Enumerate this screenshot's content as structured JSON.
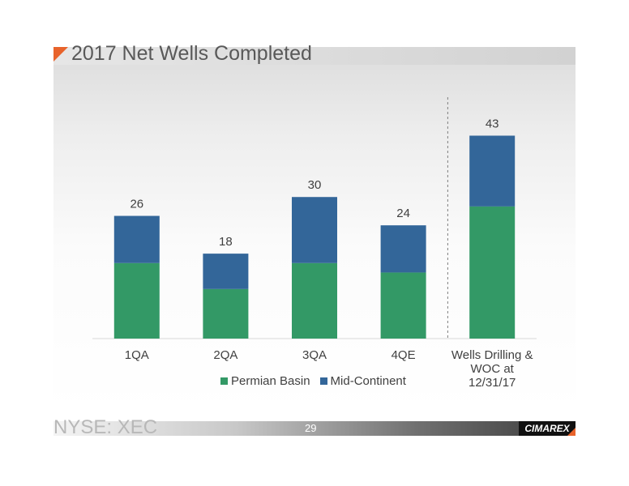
{
  "slide": {
    "title": "2017 Net Wells Completed",
    "footer_exchange": "NYSE: XEC",
    "page_number": "29",
    "logo_text": "CIMAREX"
  },
  "chart_data": {
    "type": "bar",
    "stacked": true,
    "categories": [
      "1QA",
      "2QA",
      "3QA",
      "4QE",
      "Wells Drilling & WOC at 12/31/17"
    ],
    "series": [
      {
        "name": "Permian Basin",
        "color": "#339966",
        "values": [
          16,
          10.5,
          16,
          14,
          28
        ]
      },
      {
        "name": "Mid-Continent",
        "color": "#336699",
        "values": [
          10,
          7.5,
          14,
          10,
          15
        ]
      }
    ],
    "totals": [
      26,
      18,
      30,
      24,
      43
    ],
    "ylim": [
      0,
      46
    ],
    "separator_before_index": 4,
    "legend_position": "bottom",
    "grid": false
  }
}
